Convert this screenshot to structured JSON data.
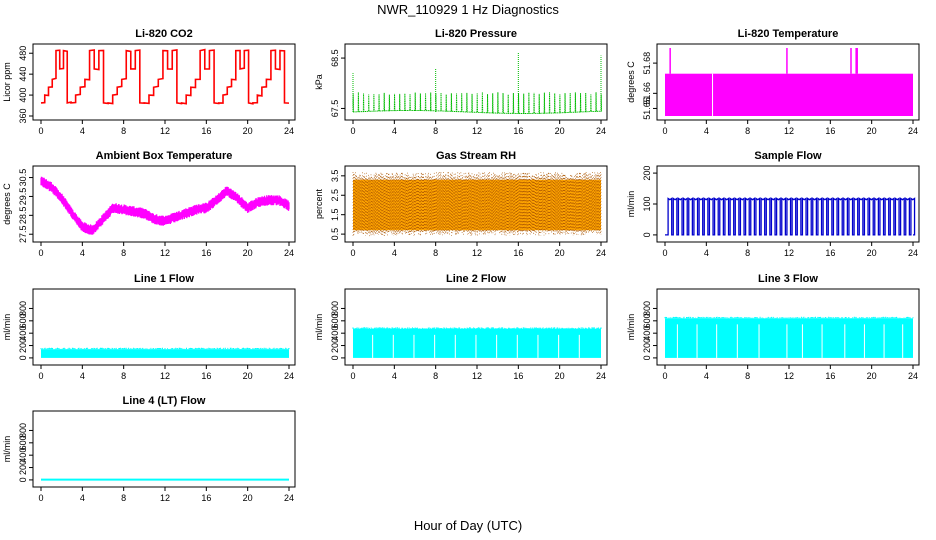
{
  "page": {
    "title": "NWR_110929  1 Hz Diagnostics",
    "x_axis_title": "Hour of Day (UTC)"
  },
  "chart_data": [
    {
      "type": "line",
      "title": "Li-820 CO2",
      "ylabel": "Licor ppm",
      "color": "#ff0000",
      "xlim": [
        0,
        24
      ],
      "ylim": [
        360,
        490
      ],
      "xticks": [
        0,
        4,
        8,
        12,
        16,
        20,
        24
      ],
      "yticks": [
        360,
        400,
        440,
        480
      ],
      "pattern": "stepped cycle",
      "step_levels": [
        385,
        400,
        415,
        430,
        450,
        485
      ],
      "cycle_starts": [
        0,
        2.9,
        6.5,
        10.0,
        13.6,
        17.2,
        20.5
      ],
      "x_end": 24
    },
    {
      "type": "line",
      "title": "Li-820 Pressure",
      "ylabel": "kPa",
      "color": "#00bb00",
      "xlim": [
        0,
        24
      ],
      "ylim": [
        67.35,
        68.7
      ],
      "xticks": [
        0,
        4,
        8,
        12,
        16,
        20,
        24
      ],
      "yticks": [
        67.5,
        68.5
      ],
      "baseline": 67.43,
      "spike_top": 67.8,
      "spike_spacing_hours": 0.5,
      "outliers": [
        {
          "x": 0,
          "y": 68.2
        },
        {
          "x": 8,
          "y": 68.3
        },
        {
          "x": 16,
          "y": 68.6
        },
        {
          "x": 24,
          "y": 68.55
        }
      ]
    },
    {
      "type": "area",
      "title": "Li-820 Temperature",
      "ylabel": "degrees C",
      "color": "#ff00ff",
      "xlim": [
        0,
        24
      ],
      "ylim": [
        51.645,
        51.69
      ],
      "xticks": [
        0,
        4,
        8,
        12,
        16,
        20,
        24
      ],
      "yticks": [
        51.65,
        51.66,
        51.68
      ],
      "band_low": 51.645,
      "band_high": 51.673,
      "band_x": [
        0,
        24
      ],
      "gap_x": 4.6,
      "spikes": [
        {
          "x": 0.5,
          "y": 51.69
        },
        {
          "x": 11.8,
          "y": 51.69
        },
        {
          "x": 18.0,
          "y": 51.69
        },
        {
          "x": 18.5,
          "y": 51.69
        },
        {
          "x": 18.6,
          "y": 51.69
        }
      ]
    },
    {
      "type": "line",
      "title": "Ambient Box Temperature",
      "ylabel": "degrees C",
      "color": "#ff00ff",
      "xlim": [
        0,
        24
      ],
      "ylim": [
        27.3,
        30.9
      ],
      "xticks": [
        0,
        4,
        8,
        12,
        16,
        20,
        24
      ],
      "yticks": [
        27.5,
        28.5,
        29.5,
        30.5
      ],
      "x": [
        0,
        1,
        2,
        3,
        4,
        5,
        6,
        7,
        8,
        9,
        10,
        11,
        12,
        13,
        14,
        15,
        16,
        17,
        18,
        19,
        20,
        21,
        22,
        23,
        24
      ],
      "y": [
        30.3,
        30.0,
        29.4,
        28.6,
        27.9,
        27.7,
        28.3,
        28.9,
        28.8,
        28.7,
        28.6,
        28.3,
        28.2,
        28.4,
        28.6,
        28.8,
        28.9,
        29.3,
        29.8,
        29.4,
        28.9,
        29.2,
        29.3,
        29.3,
        29.0
      ],
      "noise": 0.28
    },
    {
      "type": "area",
      "title": "Gas Stream RH",
      "ylabel": "percent",
      "color": "#ffa500",
      "color2": "#aa5500",
      "xlim": [
        0,
        24
      ],
      "ylim": [
        0.3,
        3.8
      ],
      "xticks": [
        0,
        4,
        8,
        12,
        16,
        20,
        24
      ],
      "yticks": [
        0.5,
        1.5,
        2.5,
        3.5
      ],
      "band_low": 0.7,
      "band_high": 3.3
    },
    {
      "type": "line",
      "title": "Sample Flow",
      "ylabel": "ml/min",
      "color": "#0000cc",
      "xlim": [
        0,
        24
      ],
      "ylim": [
        -10,
        210
      ],
      "xticks": [
        0,
        4,
        8,
        12,
        16,
        20,
        24
      ],
      "yticks": [
        0,
        100,
        200
      ],
      "baseline": 0,
      "pulse_high": 118,
      "pulse_width_hours": 0.35,
      "pulse_spacing_hours": 0.5
    },
    {
      "type": "area",
      "title": "Line 1 Flow",
      "ylabel": "ml/min",
      "color": "#00ffff",
      "xlim": [
        0,
        24
      ],
      "ylim": [
        -50,
        1050
      ],
      "xticks": [
        0,
        4,
        8,
        12,
        16,
        20,
        24
      ],
      "yticks": [
        0,
        200,
        400,
        600,
        800
      ],
      "band_low": 0,
      "band_high": 140
    },
    {
      "type": "area",
      "title": "Line 2 Flow",
      "ylabel": "ml/min",
      "color": "#00ffff",
      "xlim": [
        0,
        24
      ],
      "ylim": [
        -50,
        1050
      ],
      "xticks": [
        0,
        4,
        8,
        12,
        16,
        20,
        24
      ],
      "yticks": [
        0,
        200,
        400,
        600,
        800
      ],
      "band_low": 0,
      "band_high": 470,
      "gaps": [
        1.9,
        3.9,
        5.9,
        7.9,
        9.9,
        11.9,
        13.9,
        15.9,
        17.9,
        19.9,
        21.9
      ]
    },
    {
      "type": "area",
      "title": "Line 3 Flow",
      "ylabel": "ml/min",
      "color": "#00ffff",
      "xlim": [
        0,
        24
      ],
      "ylim": [
        -50,
        1050
      ],
      "xticks": [
        0,
        4,
        8,
        12,
        16,
        20,
        24
      ],
      "yticks": [
        0,
        200,
        400,
        600,
        800
      ],
      "band_low": 0,
      "band_high": 640,
      "gaps": [
        1.2,
        3.1,
        5.0,
        7.0,
        9.1,
        11.8,
        13.3,
        15.2,
        17.4,
        19.3,
        21.2,
        23.0
      ]
    },
    {
      "type": "line",
      "title": "Line 4 (LT) Flow",
      "ylabel": "ml/min",
      "color": "#00ffff",
      "xlim": [
        0,
        24
      ],
      "ylim": [
        -50,
        1050
      ],
      "xticks": [
        0,
        4,
        8,
        12,
        16,
        20,
        24
      ],
      "yticks": [
        0,
        200,
        400,
        600,
        800
      ],
      "baseline": 5
    }
  ]
}
